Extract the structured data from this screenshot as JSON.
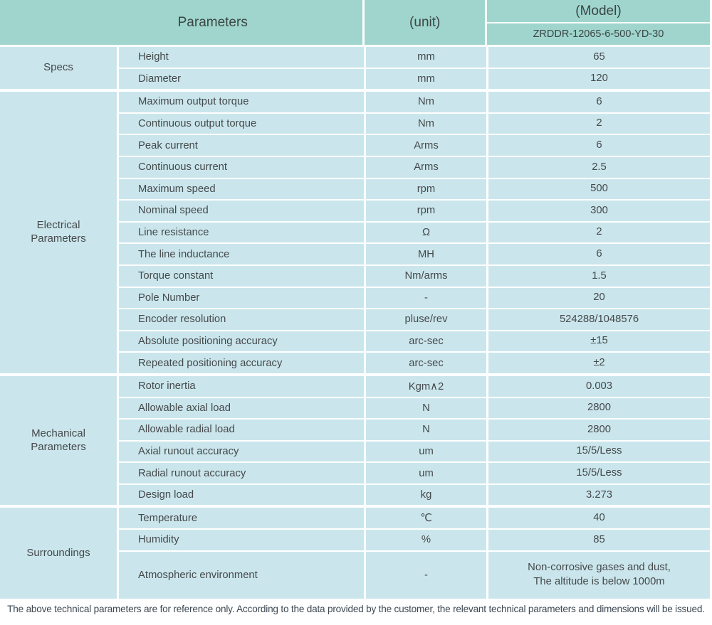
{
  "table": {
    "header": {
      "parameters_label": "Parameters",
      "unit_label": "(unit)",
      "model_label": "(Model)",
      "model_value": "ZRDDR-12065-6-500-YD-30"
    },
    "groups": [
      {
        "label": "Specs",
        "rows": [
          {
            "param": "Height",
            "unit": "mm",
            "value": "65"
          },
          {
            "param": "Diameter",
            "unit": "mm",
            "value": "120"
          }
        ]
      },
      {
        "label": "Electrical\nParameters",
        "rows": [
          {
            "param": "Maximum output torque",
            "unit": "Nm",
            "value": "6"
          },
          {
            "param": "Continuous output torque",
            "unit": "Nm",
            "value": "2"
          },
          {
            "param": "Peak current",
            "unit": "Arms",
            "value": "6"
          },
          {
            "param": "Continuous current",
            "unit": "Arms",
            "value": "2.5"
          },
          {
            "param": "Maximum speed",
            "unit": "rpm",
            "value": "500"
          },
          {
            "param": "Nominal speed",
            "unit": "rpm",
            "value": "300"
          },
          {
            "param": "Line resistance",
            "unit": "Ω",
            "value": "2"
          },
          {
            "param": "The line inductance",
            "unit": "MH",
            "value": "6"
          },
          {
            "param": "Torque constant",
            "unit": "Nm/arms",
            "value": "1.5"
          },
          {
            "param": "Pole Number",
            "unit": "-",
            "value": "20"
          },
          {
            "param": "Encoder resolution",
            "unit": "pluse/rev",
            "value": "524288/1048576"
          },
          {
            "param": "Absolute positioning accuracy",
            "unit": "arc-sec",
            "value": "±15"
          },
          {
            "param": "Repeated positioning accuracy",
            "unit": "arc-sec",
            "value": "±2"
          }
        ]
      },
      {
        "label": "Mechanical\nParameters",
        "rows": [
          {
            "param": "Rotor inertia",
            "unit": "Kgm∧2",
            "value": "0.003"
          },
          {
            "param": "Allowable axial load",
            "unit": "N",
            "value": "2800"
          },
          {
            "param": "Allowable radial load",
            "unit": "N",
            "value": "2800"
          },
          {
            "param": "Axial runout accuracy",
            "unit": "um",
            "value": "15/5/Less"
          },
          {
            "param": "Radial runout accuracy",
            "unit": "um",
            "value": "15/5/Less"
          },
          {
            "param": "Design load",
            "unit": "kg",
            "value": "3.273"
          }
        ]
      },
      {
        "label": "Surroundings",
        "rows": [
          {
            "param": "Temperature",
            "unit": "℃",
            "value": "40"
          },
          {
            "param": "Humidity",
            "unit": "%",
            "value": "85"
          },
          {
            "param": "Atmospheric environment",
            "unit": "-",
            "value": "Non-corrosive gases and dust,\nThe altitude is below 1000m"
          }
        ]
      }
    ]
  },
  "footer": {
    "note": "The above technical parameters are for reference only. According to the data provided by the customer, the relevant technical parameters and dimensions will be issued."
  },
  "colors": {
    "header_bg": "#9fd5cd",
    "cell_bg": "#cae6ec",
    "text": "#45494b",
    "footer_text": "#3d4852"
  }
}
